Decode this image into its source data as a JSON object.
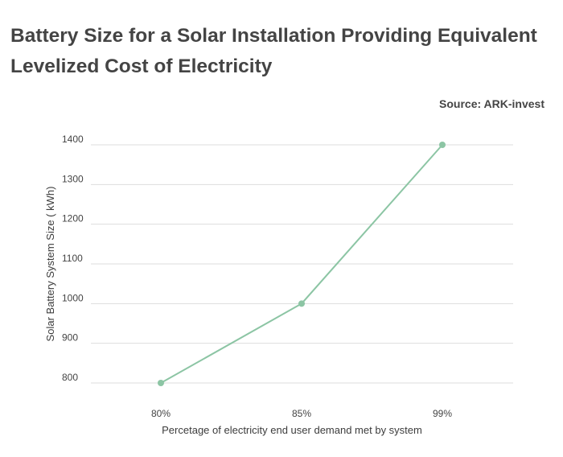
{
  "header": {
    "title": "Battery Size for a Solar Installation Providing Equivalent Levelized Cost of Electricity",
    "source": "Source: ARK-invest"
  },
  "chart_data": {
    "type": "line",
    "categories": [
      "80%",
      "85%",
      "99%"
    ],
    "series": [
      {
        "values": [
          800,
          1000,
          1400
        ],
        "color": "#8cc5a4"
      }
    ],
    "xlabel": "Percetage of electricity end user demand met by system",
    "ylabel": "Solar Battery System Size ( kWh)",
    "ylim": [
      800,
      1400
    ],
    "yticks": [
      800,
      900,
      1000,
      1100,
      1200,
      1300,
      1400
    ],
    "grid": true,
    "legend": "none",
    "gridline_color": "#dddddd"
  }
}
